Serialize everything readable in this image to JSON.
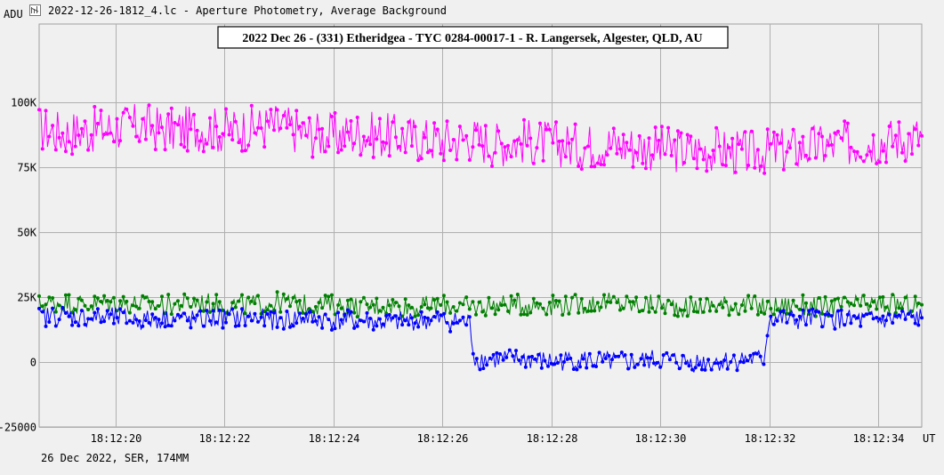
{
  "window": {
    "title": "2022-12-26-1812_4.lc - Aperture Photometry, Average Background"
  },
  "footer": {
    "text": "26 Dec 2022, SER, 174MM"
  },
  "chart_data": {
    "type": "line",
    "title": "2022 Dec 26 - (331) Etheridgea - TYC 0284-00017-1 - R. Langersek, Algester, QLD, AU",
    "ylabel": "ADU",
    "xlabel": "UT",
    "ylim": [
      -25000,
      130000
    ],
    "xlim": [
      "18:12:18.6",
      "18:12:34.8"
    ],
    "y_ticks": [
      {
        "value": 100000,
        "label": "100K"
      },
      {
        "value": 75000,
        "label": "75K"
      },
      {
        "value": 50000,
        "label": "50K"
      },
      {
        "value": 25000,
        "label": "25K"
      },
      {
        "value": 0,
        "label": "0"
      },
      {
        "value": -25000,
        "label": "-25000"
      }
    ],
    "x_ticks": [
      "18:12:20",
      "18:12:22",
      "18:12:24",
      "18:12:26",
      "18:12:28",
      "18:12:30",
      "18:12:32",
      "18:12:34"
    ],
    "grid": true,
    "series": [
      {
        "color": "#ff00ff",
        "description_shape": "noisy level, occultation-free comparison",
        "x": [
          "18:12:18.6",
          "18:12:19.0",
          "18:12:19.5",
          "18:12:20.0",
          "18:12:20.5",
          "18:12:21.0",
          "18:12:21.5",
          "18:12:22.0",
          "18:12:22.5",
          "18:12:23.0",
          "18:12:23.5",
          "18:12:24.0",
          "18:12:24.5",
          "18:12:25.0",
          "18:12:25.5",
          "18:12:26.0",
          "18:12:26.5",
          "18:12:27.0",
          "18:12:27.5",
          "18:12:28.0",
          "18:12:28.5",
          "18:12:29.0",
          "18:12:29.5",
          "18:12:30.0",
          "18:12:30.5",
          "18:12:31.0",
          "18:12:31.5",
          "18:12:32.0",
          "18:12:32.5",
          "18:12:33.0",
          "18:12:33.5",
          "18:12:34.0",
          "18:12:34.5",
          "18:12:34.8"
        ],
        "values": [
          90000,
          88000,
          89000,
          90000,
          91000,
          89000,
          90000,
          89000,
          90000,
          91000,
          88000,
          87000,
          88000,
          87000,
          86000,
          85000,
          86000,
          84000,
          85000,
          84000,
          83000,
          84000,
          83000,
          82000,
          81000,
          82000,
          80000,
          81000,
          82000,
          83000,
          84000,
          85000,
          86000,
          87000
        ]
      },
      {
        "color": "#008000",
        "description_shape": "steady level around 22K",
        "x": [
          "18:12:18.6",
          "18:12:19.0",
          "18:12:19.5",
          "18:12:20.0",
          "18:12:20.5",
          "18:12:21.0",
          "18:12:21.5",
          "18:12:22.0",
          "18:12:22.5",
          "18:12:23.0",
          "18:12:23.5",
          "18:12:24.0",
          "18:12:24.5",
          "18:12:25.0",
          "18:12:25.5",
          "18:12:26.0",
          "18:12:26.5",
          "18:12:27.0",
          "18:12:27.5",
          "18:12:28.0",
          "18:12:28.5",
          "18:12:29.0",
          "18:12:29.5",
          "18:12:30.0",
          "18:12:30.5",
          "18:12:31.0",
          "18:12:31.5",
          "18:12:32.0",
          "18:12:32.5",
          "18:12:33.0",
          "18:12:33.5",
          "18:12:34.0",
          "18:12:34.5",
          "18:12:34.8"
        ],
        "values": [
          22000,
          23000,
          22000,
          23000,
          22000,
          22000,
          23000,
          22000,
          22000,
          23000,
          22000,
          22000,
          21000,
          22000,
          21000,
          22000,
          21000,
          22000,
          22000,
          22000,
          22000,
          23000,
          22000,
          22000,
          21000,
          22000,
          22000,
          21000,
          22000,
          21000,
          22000,
          22000,
          22000,
          22000
        ]
      },
      {
        "color": "#0000ff",
        "description_shape": "target: ~17K with drop to ~0 (occultation)",
        "x": [
          "18:12:18.6",
          "18:12:19.0",
          "18:12:19.5",
          "18:12:20.0",
          "18:12:20.5",
          "18:12:21.0",
          "18:12:21.5",
          "18:12:22.0",
          "18:12:22.5",
          "18:12:23.0",
          "18:12:23.5",
          "18:12:24.0",
          "18:12:24.5",
          "18:12:25.0",
          "18:12:25.5",
          "18:12:26.0",
          "18:12:26.5",
          "18:12:26.6",
          "18:12:27.0",
          "18:12:27.5",
          "18:12:28.0",
          "18:12:28.5",
          "18:12:29.0",
          "18:12:29.5",
          "18:12:30.0",
          "18:12:30.5",
          "18:12:31.0",
          "18:12:31.5",
          "18:12:31.9",
          "18:12:32.0",
          "18:12:32.5",
          "18:12:33.0",
          "18:12:33.5",
          "18:12:34.0",
          "18:12:34.5",
          "18:12:34.8"
        ],
        "values": [
          17000,
          18000,
          17000,
          17000,
          16000,
          17000,
          16000,
          17000,
          17000,
          16000,
          17000,
          16000,
          16000,
          15000,
          16000,
          16000,
          15000,
          1000,
          1000,
          1000,
          0,
          1000,
          0,
          0,
          1000,
          0,
          0,
          1000,
          1000,
          17000,
          16000,
          17000,
          16000,
          16000,
          17000,
          17000
        ]
      }
    ]
  }
}
